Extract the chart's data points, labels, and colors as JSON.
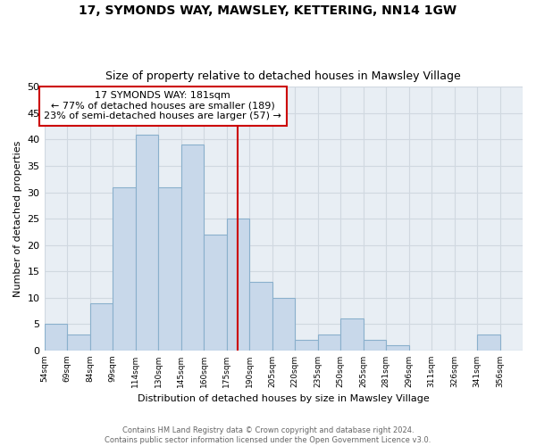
{
  "title": "17, SYMONDS WAY, MAWSLEY, KETTERING, NN14 1GW",
  "subtitle": "Size of property relative to detached houses in Mawsley Village",
  "xlabel": "Distribution of detached houses by size in Mawsley Village",
  "ylabel": "Number of detached properties",
  "footer_line1": "Contains HM Land Registry data © Crown copyright and database right 2024.",
  "footer_line2": "Contains public sector information licensed under the Open Government Licence v3.0.",
  "bin_labels": [
    "54sqm",
    "69sqm",
    "84sqm",
    "99sqm",
    "114sqm",
    "130sqm",
    "145sqm",
    "160sqm",
    "175sqm",
    "190sqm",
    "205sqm",
    "220sqm",
    "235sqm",
    "250sqm",
    "265sqm",
    "281sqm",
    "296sqm",
    "311sqm",
    "326sqm",
    "341sqm",
    "356sqm"
  ],
  "bar_values": [
    5,
    3,
    9,
    31,
    41,
    31,
    39,
    22,
    25,
    13,
    10,
    2,
    3,
    6,
    2,
    1,
    0,
    0,
    0,
    3,
    0
  ],
  "bar_color": "#c8d8ea",
  "bar_edge_color": "#8ab0cc",
  "grid_color": "#d0d8e0",
  "bg_color": "#e8eef4",
  "vline_x": 8.5,
  "vline_color": "#cc0000",
  "annotation_title": "17 SYMONDS WAY: 181sqm",
  "annotation_line1": "← 77% of detached houses are smaller (189)",
  "annotation_line2": "23% of semi-detached houses are larger (57) →",
  "annotation_box_facecolor": "#ffffff",
  "annotation_box_edgecolor": "#cc0000",
  "ylim": [
    0,
    50
  ],
  "yticks": [
    0,
    5,
    10,
    15,
    20,
    25,
    30,
    35,
    40,
    45,
    50
  ]
}
